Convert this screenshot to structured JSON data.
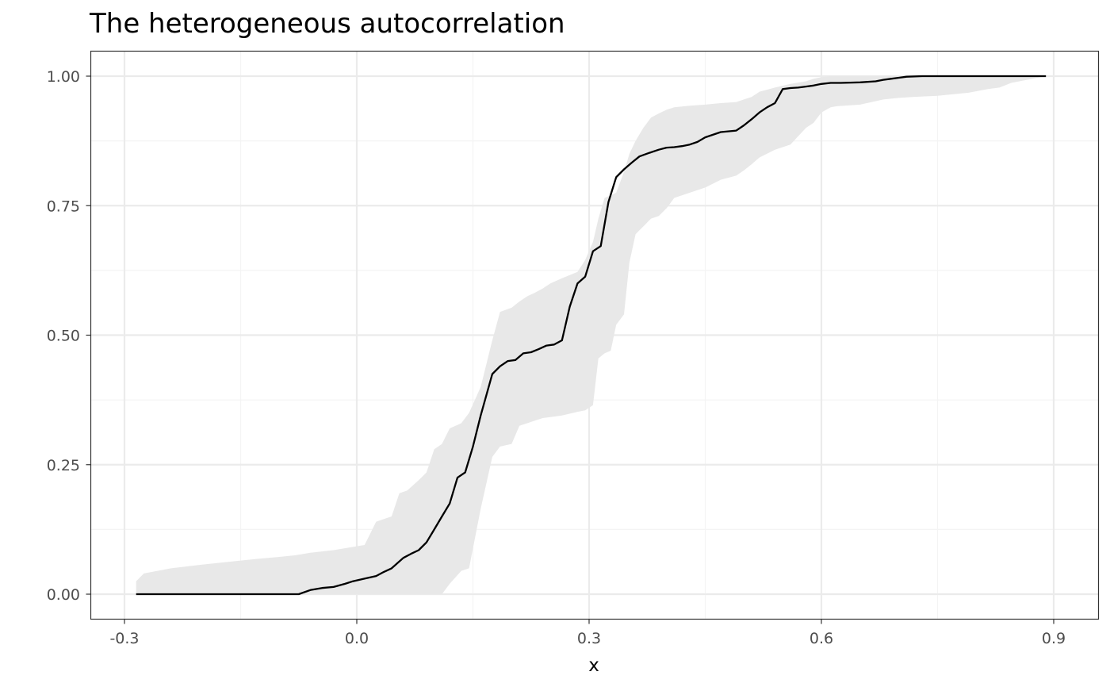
{
  "chart_data": {
    "type": "line",
    "title": "The heterogeneous autocorrelation",
    "xlabel": "x",
    "ylabel": "",
    "xlim": [
      -0.3,
      0.9
    ],
    "ylim": [
      0,
      1
    ],
    "x_ticks": [
      "-0.3",
      "0.0",
      "0.3",
      "0.6",
      "0.9"
    ],
    "y_ticks": [
      "0.00",
      "0.25",
      "0.50",
      "0.75",
      "1.00"
    ],
    "grid": true,
    "legend": "none",
    "colors": {
      "line": "#000000",
      "ribbon": "#e8e8e8",
      "grid_major": "#ebebeb",
      "grid_minor": "#f4f4f4",
      "panel_border": "#333333"
    },
    "series": [
      {
        "x": [
          -0.285,
          -0.075,
          -0.06,
          -0.045,
          -0.03,
          -0.015,
          -0.005,
          0.01,
          0.025,
          0.035,
          0.045,
          0.06,
          0.07,
          0.08,
          0.09,
          0.1,
          0.11,
          0.12,
          0.13,
          0.14,
          0.15,
          0.16,
          0.175,
          0.185,
          0.195,
          0.205,
          0.215,
          0.225,
          0.235,
          0.245,
          0.255,
          0.265,
          0.275,
          0.285,
          0.295,
          0.305,
          0.315,
          0.325,
          0.335,
          0.345,
          0.355,
          0.365,
          0.378,
          0.39,
          0.4,
          0.41,
          0.42,
          0.43,
          0.44,
          0.45,
          0.47,
          0.49,
          0.5,
          0.51,
          0.52,
          0.53,
          0.54,
          0.55,
          0.56,
          0.57,
          0.58,
          0.59,
          0.6,
          0.612,
          0.625,
          0.65,
          0.67,
          0.68,
          0.69,
          0.7,
          0.71,
          0.73,
          0.75,
          0.77,
          0.79,
          0.81,
          0.83,
          0.89
        ],
        "y": [
          0.0,
          0.0,
          0.008,
          0.012,
          0.014,
          0.02,
          0.025,
          0.03,
          0.035,
          0.043,
          0.05,
          0.07,
          0.078,
          0.085,
          0.1,
          0.125,
          0.15,
          0.175,
          0.225,
          0.235,
          0.285,
          0.345,
          0.425,
          0.44,
          0.45,
          0.452,
          0.465,
          0.467,
          0.473,
          0.48,
          0.482,
          0.49,
          0.555,
          0.6,
          0.613,
          0.662,
          0.672,
          0.757,
          0.805,
          0.82,
          0.833,
          0.845,
          0.852,
          0.858,
          0.862,
          0.863,
          0.865,
          0.868,
          0.873,
          0.882,
          0.892,
          0.895,
          0.905,
          0.917,
          0.93,
          0.94,
          0.948,
          0.975,
          0.977,
          0.978,
          0.98,
          0.982,
          0.985,
          0.987,
          0.987,
          0.988,
          0.99,
          0.993,
          0.995,
          0.997,
          0.999,
          1.0,
          1.0,
          1.0,
          1.0,
          1.0,
          1.0,
          1.0
        ]
      }
    ],
    "ribbon": {
      "x": [
        -0.285,
        -0.275,
        -0.24,
        -0.2,
        -0.15,
        -0.13,
        -0.1,
        -0.08,
        -0.06,
        -0.03,
        -0.01,
        0.01,
        0.015,
        0.025,
        0.035,
        0.045,
        0.055,
        0.065,
        0.08,
        0.09,
        0.1,
        0.11,
        0.12,
        0.135,
        0.145,
        0.16,
        0.175,
        0.185,
        0.2,
        0.21,
        0.22,
        0.23,
        0.24,
        0.25,
        0.265,
        0.285,
        0.295,
        0.305,
        0.312,
        0.32,
        0.328,
        0.335,
        0.345,
        0.352,
        0.36,
        0.37,
        0.38,
        0.39,
        0.4,
        0.41,
        0.43,
        0.45,
        0.47,
        0.49,
        0.5,
        0.51,
        0.52,
        0.54,
        0.56,
        0.58,
        0.59,
        0.6,
        0.612,
        0.62,
        0.65,
        0.68,
        0.7,
        0.72,
        0.75,
        0.79,
        0.815,
        0.83,
        0.845,
        0.89
      ],
      "low": [
        0.0,
        0.0,
        0.0,
        0.0,
        0.0,
        0.0,
        0.0,
        0.0,
        0.0,
        0.0,
        0.0,
        0.0,
        0.0,
        0.0,
        0.0,
        0.0,
        0.0,
        0.0,
        0.0,
        0.0,
        0.0,
        0.0,
        0.02,
        0.045,
        0.05,
        0.165,
        0.265,
        0.285,
        0.29,
        0.325,
        0.33,
        0.335,
        0.34,
        0.342,
        0.345,
        0.352,
        0.355,
        0.365,
        0.455,
        0.465,
        0.47,
        0.52,
        0.54,
        0.64,
        0.695,
        0.71,
        0.725,
        0.73,
        0.745,
        0.765,
        0.775,
        0.785,
        0.8,
        0.808,
        0.818,
        0.83,
        0.843,
        0.858,
        0.868,
        0.9,
        0.91,
        0.93,
        0.94,
        0.942,
        0.945,
        0.955,
        0.958,
        0.96,
        0.962,
        0.968,
        0.975,
        0.978,
        0.987,
        1.0
      ],
      "high": [
        0.025,
        0.04,
        0.05,
        0.057,
        0.065,
        0.068,
        0.072,
        0.075,
        0.08,
        0.085,
        0.09,
        0.095,
        0.11,
        0.14,
        0.145,
        0.15,
        0.195,
        0.2,
        0.22,
        0.235,
        0.28,
        0.29,
        0.32,
        0.33,
        0.35,
        0.4,
        0.49,
        0.545,
        0.553,
        0.565,
        0.575,
        0.582,
        0.59,
        0.6,
        0.61,
        0.622,
        0.645,
        0.68,
        0.725,
        0.765,
        0.77,
        0.775,
        0.815,
        0.85,
        0.875,
        0.9,
        0.92,
        0.928,
        0.935,
        0.94,
        0.943,
        0.945,
        0.948,
        0.95,
        0.955,
        0.96,
        0.97,
        0.978,
        0.985,
        0.99,
        0.995,
        0.998,
        1.0,
        1.0,
        1.0,
        1.0,
        1.0,
        1.0,
        1.0,
        1.0,
        1.0,
        1.0,
        1.0,
        1.0
      ]
    }
  }
}
